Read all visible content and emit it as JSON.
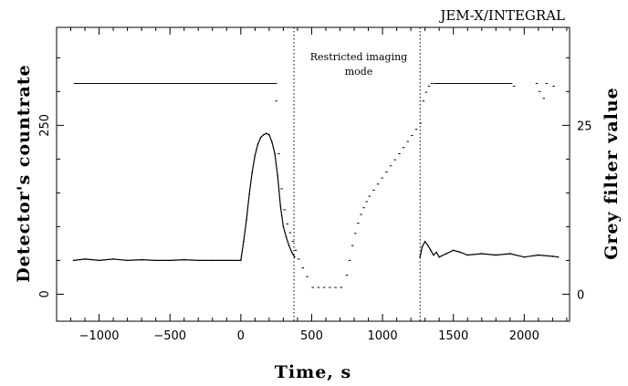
{
  "chart_data": {
    "type": "line",
    "title": "JEM-X/INTEGRAL",
    "xlabel": "Time, s",
    "ylabel": "Detector's countrate",
    "y2label": "Grey filter value",
    "xlim": [
      -1300,
      2320
    ],
    "ylim": [
      -40,
      395
    ],
    "y2lim": [
      -4,
      39.5
    ],
    "x_ticks": [
      -1000,
      -500,
      0,
      500,
      1000,
      1500,
      2000
    ],
    "y_ticks": [
      0,
      250
    ],
    "y2_ticks": [
      0,
      25
    ],
    "annotation": {
      "lines": [
        "Restricted imaging",
        "mode"
      ]
    },
    "restricted_mode_bounds": [
      375,
      1265
    ],
    "series": [
      {
        "kind": "countrate",
        "x": [
          -1180,
          -1100,
          -1000,
          -900,
          -800,
          -700,
          -600,
          -500,
          -400,
          -300,
          -200,
          -100,
          0,
          20,
          40,
          60,
          80,
          100,
          120,
          140,
          160,
          180,
          200,
          220,
          240,
          260,
          280,
          300,
          320,
          340,
          360,
          380
        ],
        "y": [
          50,
          52,
          50,
          52,
          50,
          51,
          50,
          50,
          51,
          50,
          50,
          50,
          50,
          78,
          110,
          148,
          180,
          205,
          222,
          232,
          236,
          238,
          236,
          225,
          208,
          175,
          130,
          100,
          85,
          72,
          62,
          55
        ]
      },
      {
        "kind": "countrate",
        "x": [
          1265,
          1280,
          1300,
          1320,
          1340,
          1360,
          1380,
          1400,
          1450,
          1500,
          1550,
          1600,
          1700,
          1800,
          1900,
          2000,
          2100,
          2200,
          2240
        ],
        "y": [
          55,
          70,
          78,
          72,
          65,
          58,
          62,
          55,
          60,
          65,
          62,
          58,
          60,
          58,
          60,
          55,
          58,
          56,
          55
        ]
      },
      {
        "kind": "grey-filter",
        "x": [
          -1180,
          240,
          242,
          260,
          280,
          300,
          320,
          340,
          360,
          380,
          400,
          430,
          460,
          500,
          540,
          580,
          620,
          660,
          700,
          740,
          760,
          780,
          800,
          820,
          840,
          860,
          880,
          900,
          930,
          960,
          990,
          1020,
          1050,
          1080,
          1110,
          1140,
          1170,
          1200,
          1230,
          1260,
          1280,
          1300,
          1320,
          1340,
          1360,
          1900,
          1920,
          2080,
          2100,
          2130,
          2150,
          2200
        ],
        "y": [
          31.2,
          31.2,
          28.6,
          20.8,
          15.6,
          12.5,
          10.4,
          9.1,
          7.8,
          6.5,
          5.2,
          3.9,
          2.6,
          1.0,
          1.0,
          1.0,
          1.0,
          1.0,
          1.0,
          2.8,
          5.0,
          7.2,
          9.0,
          10.5,
          11.8,
          12.8,
          13.7,
          14.5,
          15.4,
          16.3,
          17.2,
          18.1,
          19.0,
          19.9,
          20.8,
          21.7,
          22.6,
          23.5,
          24.4,
          25.3,
          28.6,
          29.9,
          30.8,
          31.2,
          31.2,
          31.2,
          30.8,
          31.2,
          30.0,
          29.0,
          31.2,
          30.8
        ]
      }
    ]
  }
}
